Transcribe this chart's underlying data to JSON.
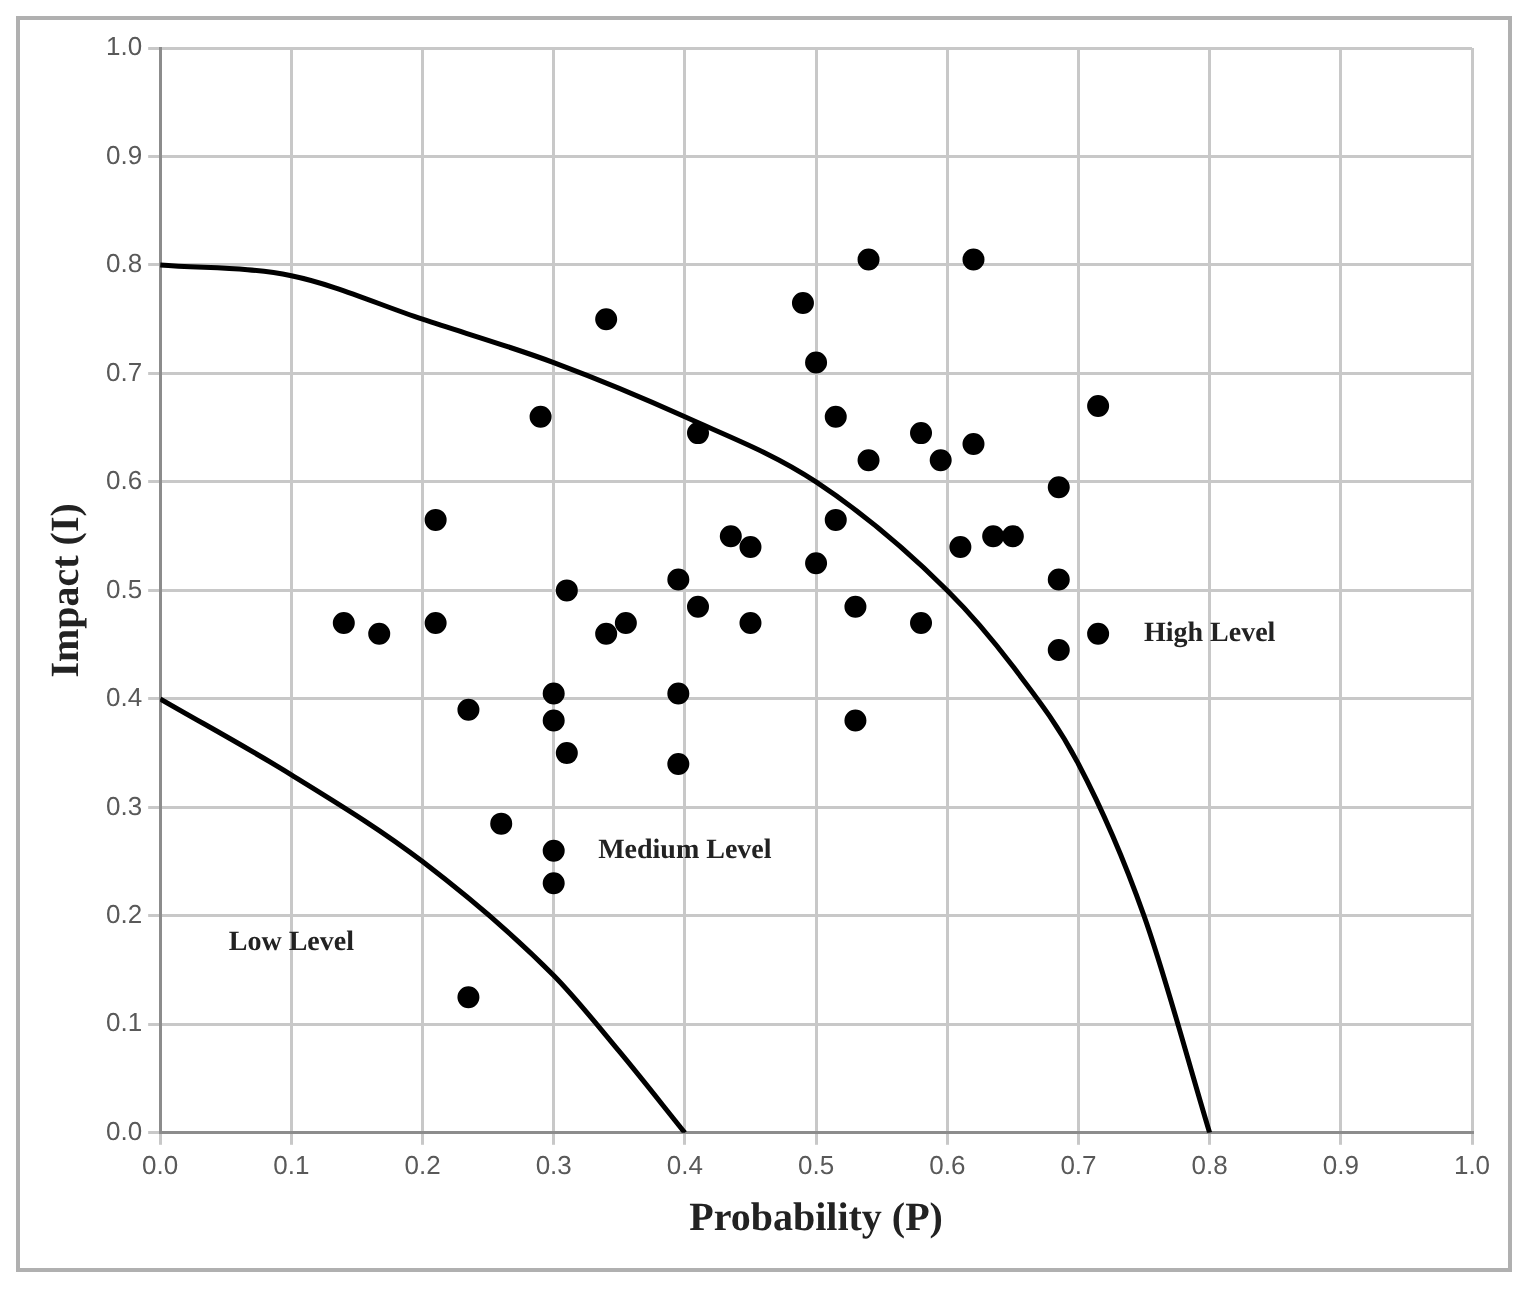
{
  "chart_data": {
    "type": "scatter",
    "xlabel": "Probability (P)",
    "ylabel": "Impact (I)",
    "xlim": [
      0,
      1
    ],
    "ylim": [
      0,
      1
    ],
    "xticks": [
      {
        "value": 0,
        "label": "0.0"
      },
      {
        "value": 0.1,
        "label": "0.1"
      },
      {
        "value": 0.2,
        "label": "0.2"
      },
      {
        "value": 0.3,
        "label": "0.3"
      },
      {
        "value": 0.4,
        "label": "0.4"
      },
      {
        "value": 0.5,
        "label": "0.5"
      },
      {
        "value": 0.6,
        "label": "0.6"
      },
      {
        "value": 0.7,
        "label": "0.7"
      },
      {
        "value": 0.8,
        "label": "0.8"
      },
      {
        "value": 0.9,
        "label": "0.9"
      },
      {
        "value": 1,
        "label": "1.0"
      }
    ],
    "yticks": [
      {
        "value": 0,
        "label": "0.0"
      },
      {
        "value": 0.1,
        "label": "0.1"
      },
      {
        "value": 0.2,
        "label": "0.2"
      },
      {
        "value": 0.3,
        "label": "0.3"
      },
      {
        "value": 0.4,
        "label": "0.4"
      },
      {
        "value": 0.5,
        "label": "0.5"
      },
      {
        "value": 0.6,
        "label": "0.6"
      },
      {
        "value": 0.7,
        "label": "0.7"
      },
      {
        "value": 0.8,
        "label": "0.8"
      },
      {
        "value": 0.9,
        "label": "0.9"
      },
      {
        "value": 1,
        "label": "1.0"
      }
    ],
    "grid": true,
    "legend": false,
    "marker": "circle",
    "annotations": [
      "Low Level",
      "Medium Level",
      "High Level"
    ],
    "series": [
      {
        "type": "scatter",
        "color": "#000000",
        "x": [
          0.14,
          0.167,
          0.21,
          0.21,
          0.235,
          0.26,
          0.235,
          0.29,
          0.3,
          0.3,
          0.31,
          0.3,
          0.3,
          0.31,
          0.34,
          0.34,
          0.355,
          0.395,
          0.395,
          0.395,
          0.41,
          0.41,
          0.435,
          0.45,
          0.45,
          0.49,
          0.5,
          0.5,
          0.515,
          0.515,
          0.53,
          0.53,
          0.54,
          0.54,
          0.58,
          0.58,
          0.595,
          0.61,
          0.62,
          0.62,
          0.635,
          0.65,
          0.685,
          0.685,
          0.685,
          0.715,
          0.715
        ],
        "values": [
          0.47,
          0.46,
          0.565,
          0.47,
          0.39,
          0.285,
          0.125,
          0.66,
          0.405,
          0.38,
          0.35,
          0.26,
          0.23,
          0.5,
          0.75,
          0.46,
          0.47,
          0.51,
          0.405,
          0.34,
          0.645,
          0.485,
          0.55,
          0.54,
          0.47,
          0.765,
          0.71,
          0.525,
          0.66,
          0.565,
          0.485,
          0.38,
          0.805,
          0.62,
          0.645,
          0.47,
          0.62,
          0.54,
          0.805,
          0.635,
          0.55,
          0.55,
          0.595,
          0.51,
          0.445,
          0.67,
          0.46
        ]
      },
      {
        "type": "line",
        "color": "#000000",
        "marker": "none",
        "x": [
          0,
          0.1,
          0.2,
          0.3,
          0.4,
          0.5,
          0.6,
          0.65,
          0.7,
          0.75,
          0.8
        ],
        "values": [
          0.8,
          0.79,
          0.75,
          0.71,
          0.66,
          0.6,
          0.5,
          0.43,
          0.34,
          0.2,
          0
        ]
      },
      {
        "type": "line",
        "color": "#000000",
        "marker": "none",
        "x": [
          0,
          0.1,
          0.2,
          0.3,
          0.35,
          0.4
        ],
        "values": [
          0.4,
          0.33,
          0.25,
          0.145,
          0.075,
          0
        ]
      }
    ]
  }
}
